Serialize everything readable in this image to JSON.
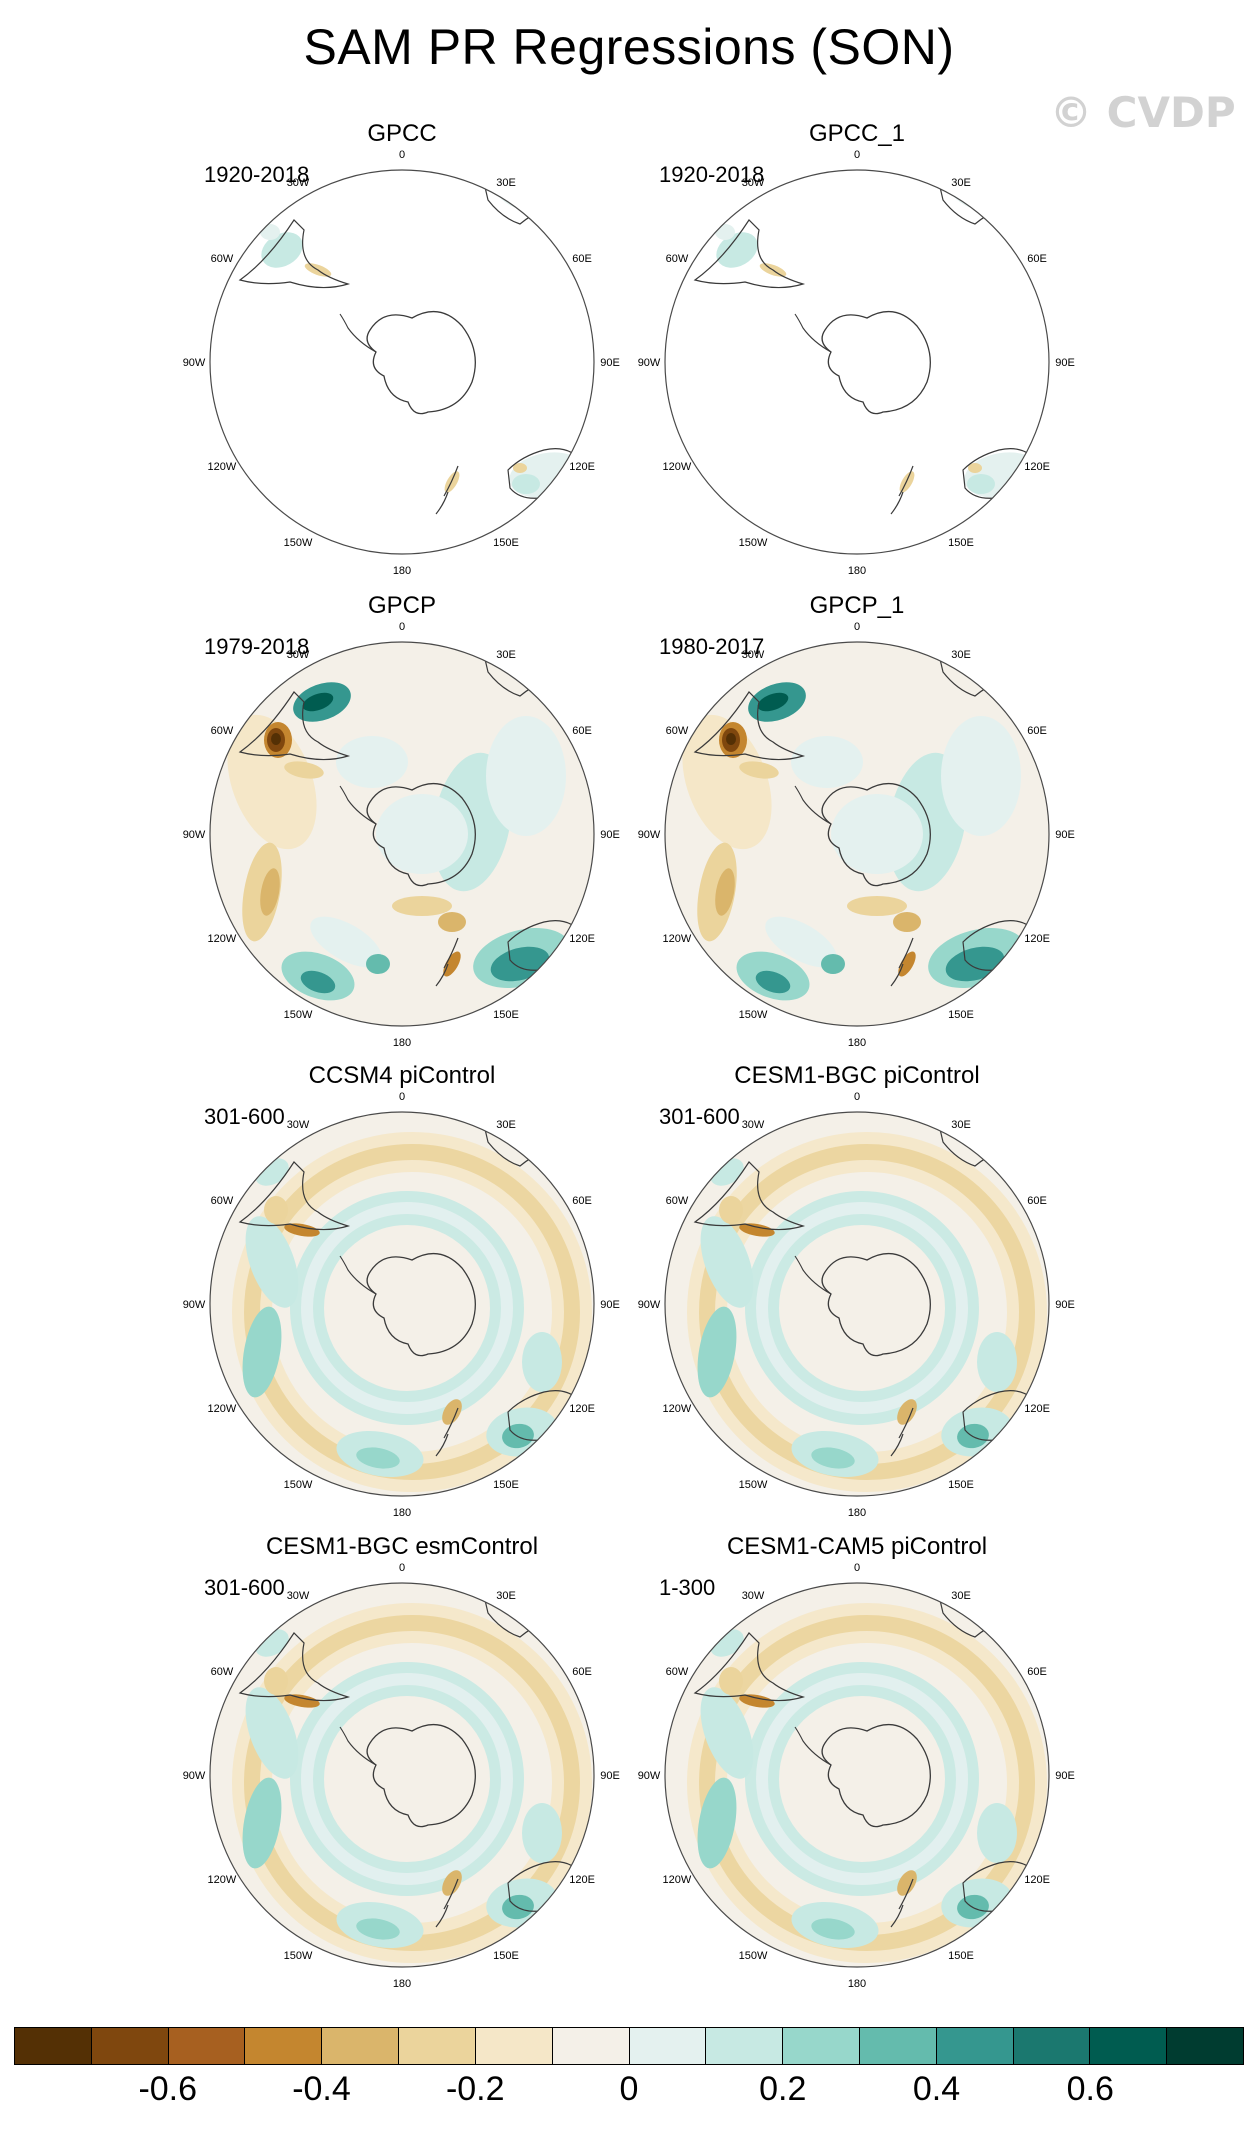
{
  "title": "SAM PR Regressions (SON)",
  "watermark": "© CVDP",
  "panels": [
    {
      "title": "GPCC",
      "period": "1920-2018",
      "pattern": "sparse"
    },
    {
      "title": "GPCC_1",
      "period": "1920-2018",
      "pattern": "sparse"
    },
    {
      "title": "GPCP",
      "period": "1979-2018",
      "pattern": "obs"
    },
    {
      "title": "GPCP_1",
      "period": "1980-2017",
      "pattern": "obs"
    },
    {
      "title": "CCSM4 piControl",
      "period": "301-600",
      "pattern": "model"
    },
    {
      "title": "CESM1-BGC piControl",
      "period": "301-600",
      "pattern": "model"
    },
    {
      "title": "CESM1-BGC esmControl",
      "period": "301-600",
      "pattern": "model"
    },
    {
      "title": "CESM1-CAM5 piControl",
      "period": "1-300",
      "pattern": "model"
    }
  ],
  "longitude_labels": [
    "0",
    "30E",
    "60E",
    "90E",
    "120E",
    "150E",
    "180",
    "150W",
    "120W",
    "90W",
    "60W",
    "30W"
  ],
  "colorbar": {
    "colors": [
      "#543005",
      "#7f470e",
      "#a76020",
      "#c4862f",
      "#dab56b",
      "#ebd49c",
      "#f5e7c8",
      "#f4f0e8",
      "#e4f1ef",
      "#c7e9e3",
      "#97d7cb",
      "#64bbad",
      "#35978f",
      "#1b786f",
      "#005c50",
      "#003c30"
    ],
    "labels": [
      "-0.6",
      "-0.4",
      "-0.2",
      "0",
      "0.2",
      "0.4",
      "0.6"
    ],
    "label_values": [
      -0.6,
      -0.4,
      -0.2,
      0,
      0.2,
      0.4,
      0.6
    ],
    "range": [
      -0.8,
      0.8
    ]
  }
}
